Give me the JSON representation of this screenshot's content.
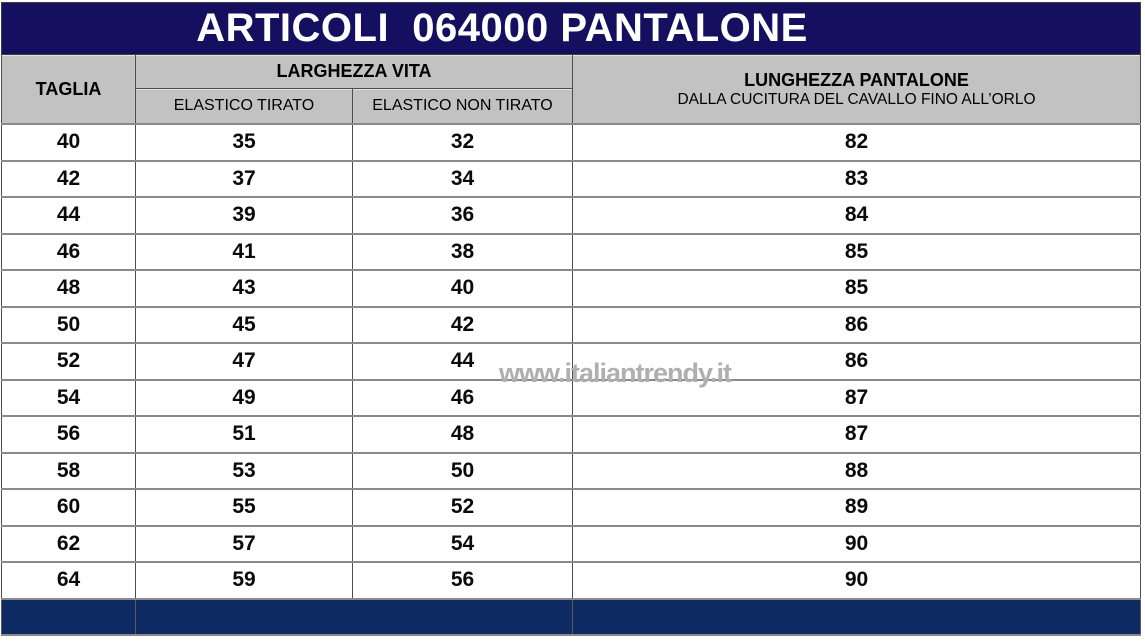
{
  "title": "ARTICOLI  064000 PANTALONE",
  "watermark": "www.italiantrendy.it",
  "colors": {
    "page-bg": "#FFFFFF",
    "title-bg": "#140F5F",
    "title-text": "#FFFFFF",
    "header-bg": "#C2C2C2",
    "header-text": "#000000",
    "footer-bg": "#0E2A63",
    "row-border": "#8A8A8A",
    "data-text": "#0A0A0A",
    "watermark-color": "#AFAFAF"
  },
  "header": {
    "taglia": "TAGLIA",
    "larghezza_vita": "LARGHEZZA VITA",
    "elastico_tirato": "ELASTICO TIRATO",
    "elastico_non_tirato": "ELASTICO NON TIRATO",
    "lunghezza_pantalone": "LUNGHEZZA PANTALONE",
    "lunghezza_sottotitolo": "DALLA CUCITURA DEL CAVALLO FINO ALL’ORLO"
  },
  "chart_data": {
    "type": "table",
    "title": "ARTICOLI 064000 PANTALONE",
    "columns": [
      "TAGLIA",
      "LARGHEZZA VITA - ELASTICO TIRATO",
      "LARGHEZZA VITA - ELASTICO NON TIRATO",
      "LUNGHEZZA PANTALONE - DALLA CUCITURA DEL CAVALLO FINO ALL’ORLO"
    ],
    "rows": [
      [
        40,
        35,
        32,
        82
      ],
      [
        42,
        37,
        34,
        83
      ],
      [
        44,
        39,
        36,
        84
      ],
      [
        46,
        41,
        38,
        85
      ],
      [
        48,
        43,
        40,
        85
      ],
      [
        50,
        45,
        42,
        86
      ],
      [
        52,
        47,
        44,
        86
      ],
      [
        54,
        49,
        46,
        87
      ],
      [
        56,
        51,
        48,
        87
      ],
      [
        58,
        53,
        50,
        88
      ],
      [
        60,
        55,
        52,
        89
      ],
      [
        62,
        57,
        54,
        90
      ],
      [
        64,
        59,
        56,
        90
      ]
    ]
  }
}
